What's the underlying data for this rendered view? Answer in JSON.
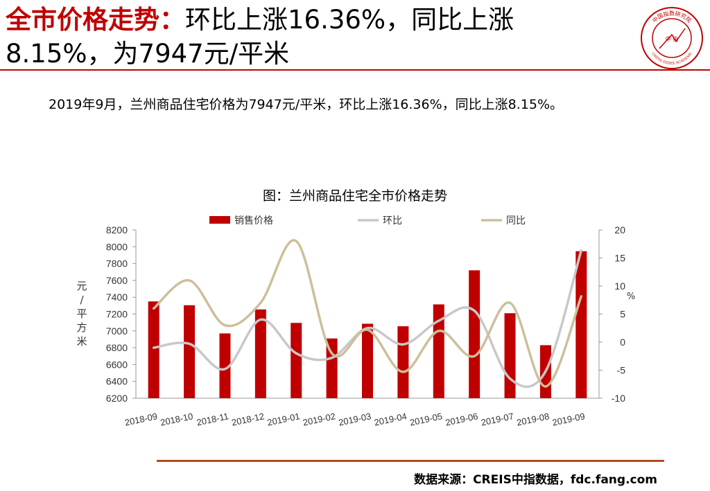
{
  "header": {
    "title_highlight": "全市价格走势：",
    "title_line1_rest": "环比上涨16.36%，同比上涨",
    "title_line2": "8.15%，为7947元/平米",
    "logo_text": "中国指数研究院",
    "logo_text_en": "CHINA INDEX ACADEMY",
    "logo_center": "中 指"
  },
  "description": "2019年9月，兰州商品住宅价格为7947元/平米，环比上涨16.36%，同比上涨8.15%。",
  "footer": {
    "source": "数据来源：CREIS中指数据，fdc.fang.com"
  },
  "colors": {
    "accent": "#c00000",
    "bar": "#c00000",
    "mom_line": "#c8c8c8",
    "yoy_line": "#cdbf9a",
    "rule_bottom": "#b14a1e"
  },
  "chart_data": {
    "type": "bar",
    "title": "图：兰州商品住宅全市价格走势",
    "categories": [
      "2018-09",
      "2018-10",
      "2018-11",
      "2018-12",
      "2019-01",
      "2019-02",
      "2019-03",
      "2019-04",
      "2019-05",
      "2019-06",
      "2019-07",
      "2019-08",
      "2019-09"
    ],
    "series": [
      {
        "name": "销售价格",
        "type": "bar",
        "axis": "left",
        "values": [
          7350,
          7305,
          6970,
          7255,
          7095,
          6910,
          7085,
          7055,
          7315,
          7720,
          7210,
          6830,
          7947
        ]
      },
      {
        "name": "环比",
        "type": "line",
        "axis": "right",
        "values": [
          -1.0,
          -0.3,
          -4.8,
          4.0,
          -2.0,
          -2.8,
          2.5,
          -0.4,
          3.8,
          5.6,
          -6.5,
          -5.2,
          16.36
        ]
      },
      {
        "name": "同比",
        "type": "line",
        "axis": "right",
        "values": [
          6.0,
          11.0,
          3.0,
          7.0,
          18.0,
          -2.0,
          2.2,
          -5.3,
          2.0,
          -2.5,
          7.0,
          -7.9,
          8.15
        ]
      }
    ],
    "ylabel": "元/平方米",
    "y2label": "%",
    "ylim": [
      6200,
      8200
    ],
    "y2lim": [
      -10,
      20
    ],
    "yticks": [
      "8200",
      "8000",
      "7800",
      "7600",
      "7400",
      "7200",
      "7000",
      "6800",
      "6600",
      "6400",
      "6200"
    ],
    "y2ticks": [
      "20",
      "15",
      "10",
      "5",
      "0",
      "-5",
      "-10"
    ],
    "legend": "top"
  }
}
